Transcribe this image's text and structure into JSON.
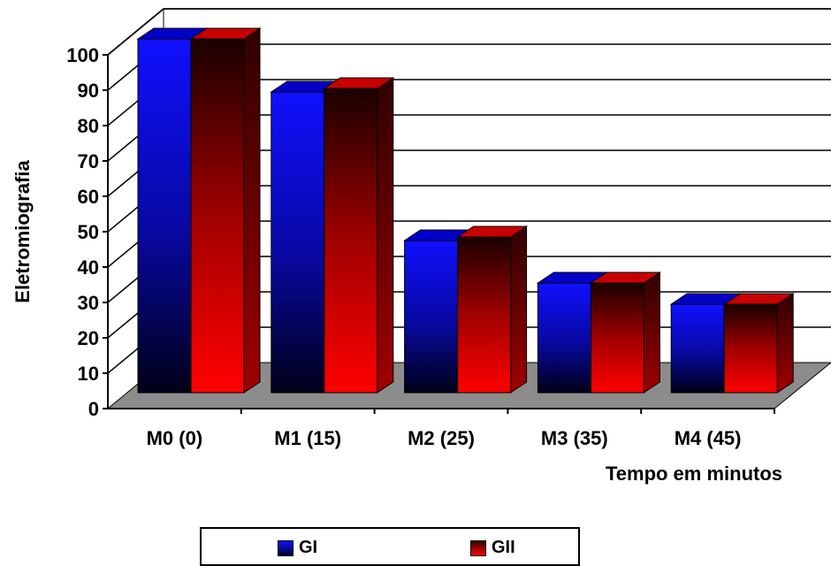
{
  "chart_data": {
    "type": "bar",
    "title": "",
    "xlabel": "Tempo em minutos",
    "ylabel": "Eletromiografia",
    "categories": [
      "M0 (0)",
      "M1 (15)",
      "M2 (25)",
      "M3 (35)",
      "M4 (45)"
    ],
    "ylim": [
      0,
      100
    ],
    "yticks": [
      "0",
      "10",
      "20",
      "30",
      "40",
      "50",
      "60",
      "70",
      "80",
      "90",
      "100"
    ],
    "grid": true,
    "legend_position": "bottom",
    "series": [
      {
        "name": "GI",
        "values": [
          100,
          85,
          43,
          31,
          25
        ],
        "color": "#0000ff"
      },
      {
        "name": "GII",
        "values": [
          100,
          86,
          44,
          31,
          25
        ],
        "color": "#ff0000"
      }
    ]
  }
}
